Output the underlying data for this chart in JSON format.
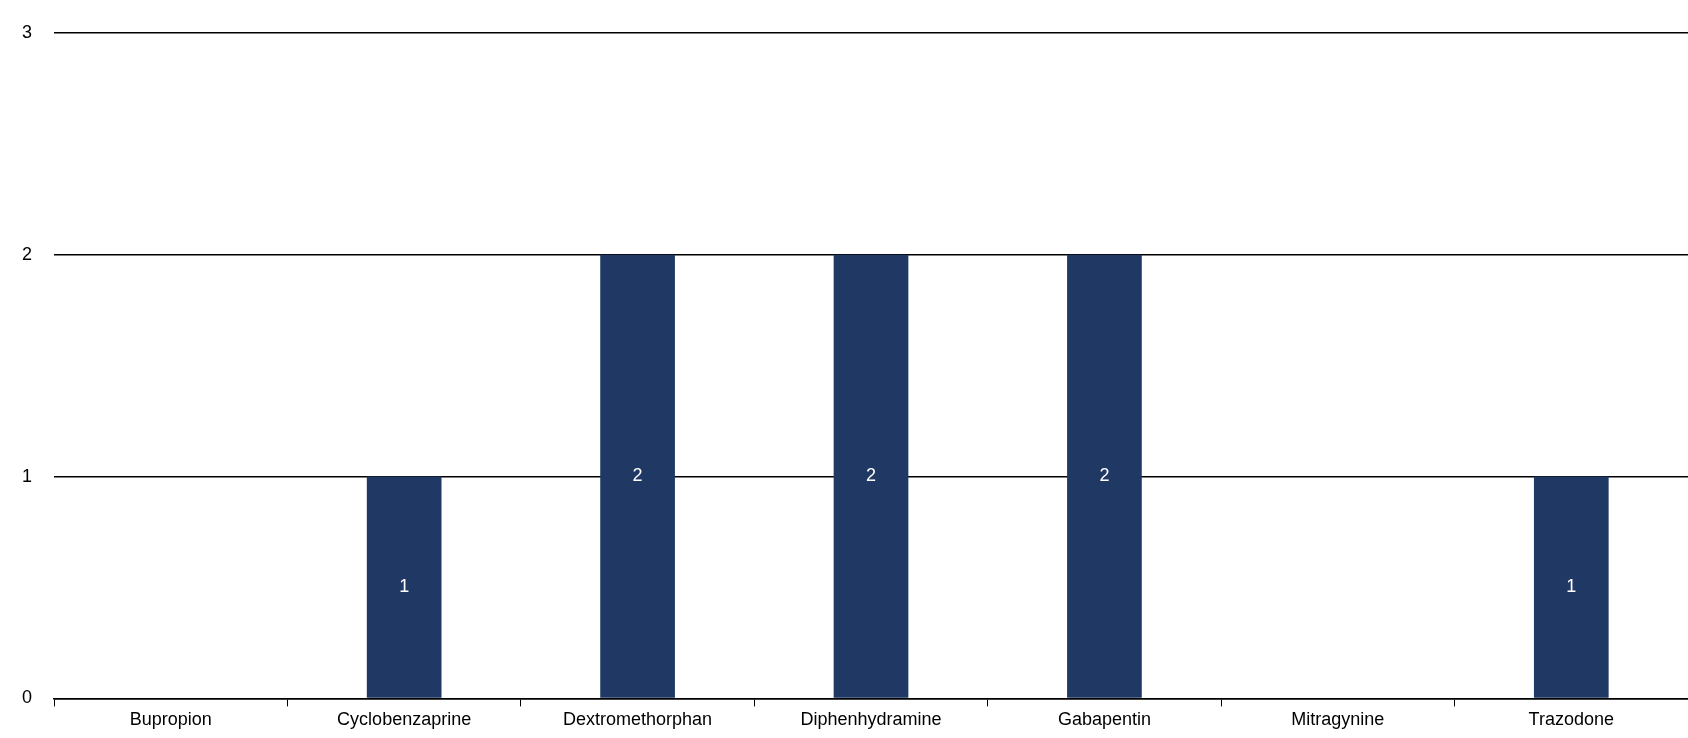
{
  "chart_data": {
    "type": "bar",
    "categories": [
      "Bupropion",
      "Cyclobenzaprine",
      "Dextromethorphan",
      "Diphenhydramine",
      "Gabapentin",
      "Mitragynine",
      "Trazodone"
    ],
    "values": [
      0,
      1,
      2,
      2,
      2,
      0,
      1
    ],
    "value_labels": [
      null,
      "1",
      "2",
      "2",
      "2",
      null,
      "1"
    ],
    "color": "#203864",
    "ylim": [
      0,
      3
    ],
    "yticks": [
      0,
      1,
      2,
      3
    ],
    "grid": "y",
    "legend": false
  }
}
